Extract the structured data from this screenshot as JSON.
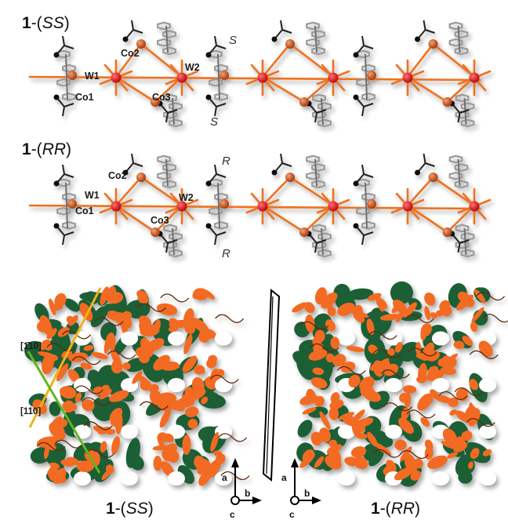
{
  "figure": {
    "chains": [
      {
        "label_prefix": "1",
        "label_suffix": "SS",
        "atoms": {
          "w1": "W1",
          "w2": "W2",
          "co1": "Co1",
          "co2": "Co2",
          "co3": "Co3"
        },
        "chirality_top": "S",
        "chirality_bottom": "S"
      },
      {
        "label_prefix": "1",
        "label_suffix": "RR",
        "atoms": {
          "w1": "W1",
          "w2": "W2",
          "co1": "Co1",
          "co2": "Co2",
          "co3": "Co3"
        },
        "chirality_top": "R",
        "chirality_bottom": "R"
      }
    ],
    "packing": {
      "direction_upper": "[1̄10]",
      "direction_lower": "[110]",
      "left_label_prefix": "1",
      "left_label_suffix": "SS",
      "right_label_prefix": "1",
      "right_label_suffix": "RR"
    },
    "axes": {
      "a": "a",
      "b": "b",
      "c": "c"
    },
    "colors": {
      "cobalt": "#c8501c",
      "tungsten": "#e8141c",
      "bond": "#f0711f",
      "ring": "#9a9a9a",
      "framework_orange": "#f36a22",
      "framework_green": "#1f5e36",
      "dir_upper": "#f2b01a",
      "dir_lower": "#5fb523"
    }
  }
}
